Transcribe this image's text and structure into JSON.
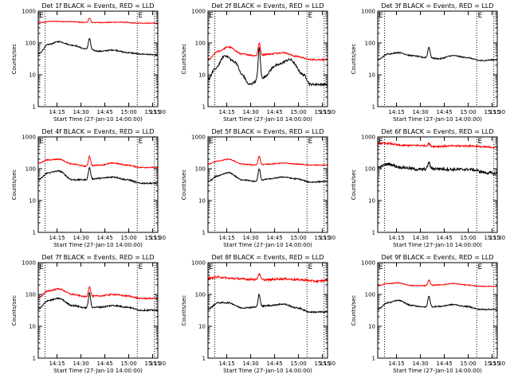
{
  "figure": {
    "background": "#ffffff",
    "axis_color": "#000000"
  },
  "chart_data": [
    {
      "type": "line",
      "title": "Det 1f BLACK = Events, RED = LLD",
      "xlabel": "Start Time (27-Jan-10 14:00:00)",
      "ylabel": "Counts/sec",
      "yscale": "log",
      "ylim": [
        1,
        1000
      ],
      "xlim_minutes": [
        3,
        38
      ],
      "x_ticks": [
        "14:15",
        "14:30",
        "14:45",
        "15:00",
        "15:15",
        "15:30"
      ],
      "y_ticks": [
        "1",
        "10",
        "100",
        "1000"
      ],
      "vlines_minutes": [
        5,
        32,
        37
      ],
      "markers": [
        "E",
        "E"
      ],
      "series": [
        {
          "color": "#ff0000",
          "peak": 600,
          "noise": 0.03,
          "x": [
            3,
            7,
            12,
            17,
            22,
            27,
            32,
            38
          ],
          "values": [
            430,
            480,
            470,
            440,
            440,
            450,
            420,
            420
          ]
        },
        {
          "color": "#000000",
          "peak": 140,
          "noise": 0.04,
          "x": [
            3,
            6,
            9,
            13,
            17,
            21,
            25,
            29,
            33,
            38
          ],
          "values": [
            45,
            90,
            110,
            85,
            65,
            55,
            60,
            50,
            45,
            42
          ]
        }
      ]
    },
    {
      "type": "line",
      "title": "Det 2f BLACK = Events, RED = LLD",
      "xlabel": "Start Time (27-Jan-10 14:00:00)",
      "ylabel": "Counts/sec",
      "yscale": "log",
      "ylim": [
        1,
        1000
      ],
      "xlim_minutes": [
        3,
        38
      ],
      "x_ticks": [
        "14:15",
        "14:30",
        "14:45",
        "15:00",
        "15:15",
        "15:30"
      ],
      "y_ticks": [
        "1",
        "10",
        "100",
        "1000"
      ],
      "vlines_minutes": [
        5,
        32,
        37
      ],
      "markers": [
        "E",
        "E"
      ],
      "series": [
        {
          "color": "#ff0000",
          "peak": 100,
          "noise": 0.05,
          "x": [
            3,
            6,
            9,
            13,
            17,
            21,
            25,
            29,
            33,
            38
          ],
          "values": [
            30,
            55,
            75,
            45,
            40,
            45,
            50,
            38,
            30,
            30
          ]
        },
        {
          "color": "#000000",
          "peak": 70,
          "noise": 0.08,
          "x": [
            3,
            5,
            8,
            11,
            13,
            15,
            19,
            23,
            27,
            31,
            33,
            38
          ],
          "values": [
            7,
            15,
            40,
            25,
            10,
            5,
            8,
            20,
            30,
            10,
            5,
            5
          ]
        }
      ]
    },
    {
      "type": "line",
      "title": "Det 3f BLACK = Events, RED = LLD",
      "xlabel": "Start Time (27-Jan-10 14:00:00)",
      "ylabel": "Counts/sec",
      "yscale": "log",
      "ylim": [
        1,
        1000
      ],
      "xlim_minutes": [
        3,
        38
      ],
      "x_ticks": [
        "14:15",
        "14:30",
        "14:45",
        "15:00",
        "15:15",
        "15:30"
      ],
      "y_ticks": [
        "1",
        "10",
        "100",
        "1000"
      ],
      "vlines_minutes": [
        5,
        32,
        37
      ],
      "markers": [
        "E",
        "E"
      ],
      "series": [
        {
          "color": "#000000",
          "peak": 75,
          "noise": 0.04,
          "x": [
            3,
            6,
            9,
            13,
            17,
            21,
            25,
            29,
            33,
            38
          ],
          "values": [
            30,
            45,
            50,
            40,
            35,
            32,
            40,
            35,
            28,
            30
          ]
        }
      ]
    },
    {
      "type": "line",
      "title": "Det 4f BLACK = Events, RED = LLD",
      "xlabel": "Start Time (27-Jan-10 14:00:00)",
      "ylabel": "Counts/sec",
      "yscale": "log",
      "ylim": [
        1,
        1000
      ],
      "xlim_minutes": [
        3,
        38
      ],
      "x_ticks": [
        "14:15",
        "14:30",
        "14:45",
        "15:00",
        "15:15",
        "15:30"
      ],
      "y_ticks": [
        "1",
        "10",
        "100",
        "1000"
      ],
      "vlines_minutes": [
        5,
        32,
        37
      ],
      "markers": [
        "E",
        "E"
      ],
      "series": [
        {
          "color": "#ff0000",
          "peak": 250,
          "noise": 0.04,
          "x": [
            3,
            6,
            9,
            13,
            17,
            21,
            25,
            29,
            33,
            38
          ],
          "values": [
            150,
            190,
            200,
            140,
            120,
            130,
            150,
            130,
            110,
            110
          ]
        },
        {
          "color": "#000000",
          "peak": 110,
          "noise": 0.05,
          "x": [
            3,
            6,
            9,
            13,
            17,
            21,
            25,
            29,
            33,
            38
          ],
          "values": [
            45,
            75,
            85,
            45,
            45,
            50,
            55,
            45,
            35,
            35
          ]
        }
      ]
    },
    {
      "type": "line",
      "title": "Det 5f BLACK = Events, RED = LLD",
      "xlabel": "Start Time (27-Jan-10 14:00:00)",
      "ylabel": "Counts/sec",
      "yscale": "log",
      "ylim": [
        1,
        1000
      ],
      "xlim_minutes": [
        3,
        38
      ],
      "x_ticks": [
        "14:15",
        "14:30",
        "14:45",
        "15:00",
        "15:15",
        "15:30"
      ],
      "y_ticks": [
        "1",
        "10",
        "100",
        "1000"
      ],
      "vlines_minutes": [
        5,
        32,
        37
      ],
      "markers": [
        "E",
        "E"
      ],
      "series": [
        {
          "color": "#ff0000",
          "peak": 250,
          "noise": 0.03,
          "x": [
            3,
            6,
            9,
            13,
            17,
            21,
            25,
            29,
            33,
            38
          ],
          "values": [
            140,
            175,
            200,
            140,
            130,
            140,
            150,
            140,
            130,
            130
          ]
        },
        {
          "color": "#000000",
          "peak": 100,
          "noise": 0.04,
          "x": [
            3,
            6,
            9,
            13,
            17,
            21,
            25,
            29,
            33,
            38
          ],
          "values": [
            40,
            60,
            75,
            45,
            40,
            48,
            55,
            48,
            38,
            40
          ]
        }
      ]
    },
    {
      "type": "line",
      "title": "Det 6f BLACK = Events, RED = LLD",
      "xlabel": "Start Time (27-Jan-10 14:00:00)",
      "ylabel": "Counts/sec",
      "yscale": "log",
      "ylim": [
        1,
        1000
      ],
      "xlim_minutes": [
        3,
        38
      ],
      "x_ticks": [
        "14:15",
        "14:30",
        "14:45",
        "15:00",
        "15:15",
        "15:30"
      ],
      "y_ticks": [
        "1",
        "10",
        "100",
        "1000"
      ],
      "vlines_minutes": [
        5,
        32,
        37
      ],
      "markers": [
        "E",
        "E"
      ],
      "series": [
        {
          "color": "#ff0000",
          "peak": 620,
          "noise": 0.06,
          "x": [
            3,
            6,
            10,
            15,
            20,
            25,
            30,
            35,
            38
          ],
          "values": [
            620,
            620,
            540,
            540,
            500,
            520,
            520,
            480,
            460
          ]
        },
        {
          "color": "#000000",
          "peak": 160,
          "noise": 0.1,
          "x": [
            3,
            6,
            10,
            15,
            20,
            25,
            30,
            35,
            38
          ],
          "values": [
            110,
            140,
            110,
            95,
            100,
            95,
            95,
            75,
            70
          ]
        }
      ]
    },
    {
      "type": "line",
      "title": "Det 7f BLACK = Events, RED = LLD",
      "xlabel": "Start Time (27-Jan-10 14:00:00)",
      "ylabel": "Counts/sec",
      "yscale": "log",
      "ylim": [
        1,
        1000
      ],
      "xlim_minutes": [
        3,
        38
      ],
      "x_ticks": [
        "14:15",
        "14:30",
        "14:45",
        "15:00",
        "15:15",
        "15:30"
      ],
      "y_ticks": [
        "1",
        "10",
        "100",
        "1000"
      ],
      "vlines_minutes": [
        5,
        32,
        37
      ],
      "markers": [
        "E",
        "E"
      ],
      "series": [
        {
          "color": "#ff0000",
          "peak": 180,
          "noise": 0.05,
          "x": [
            3,
            6,
            9,
            13,
            17,
            21,
            25,
            29,
            33,
            38
          ],
          "values": [
            80,
            130,
            150,
            100,
            85,
            90,
            100,
            90,
            75,
            75
          ]
        },
        {
          "color": "#000000",
          "peak": 110,
          "noise": 0.05,
          "x": [
            3,
            6,
            9,
            13,
            17,
            21,
            25,
            29,
            33,
            38
          ],
          "values": [
            35,
            65,
            75,
            45,
            38,
            40,
            45,
            40,
            32,
            32
          ]
        }
      ]
    },
    {
      "type": "line",
      "title": "Det 8f BLACK = Events, RED = LLD",
      "xlabel": "Start Time (27-Jan-10 14:00:00)",
      "ylabel": "Counts/sec",
      "yscale": "log",
      "ylim": [
        1,
        1000
      ],
      "xlim_minutes": [
        3,
        38
      ],
      "x_ticks": [
        "14:15",
        "14:30",
        "14:45",
        "15:00",
        "15:15",
        "15:30"
      ],
      "y_ticks": [
        "1",
        "10",
        "100",
        "1000"
      ],
      "vlines_minutes": [
        5,
        32,
        37
      ],
      "markers": [
        "E",
        "E"
      ],
      "series": [
        {
          "color": "#ff0000",
          "peak": 450,
          "noise": 0.07,
          "x": [
            3,
            6,
            10,
            15,
            20,
            25,
            30,
            35,
            38
          ],
          "values": [
            320,
            350,
            320,
            300,
            290,
            310,
            290,
            260,
            280
          ]
        },
        {
          "color": "#000000",
          "peak": 100,
          "noise": 0.05,
          "x": [
            3,
            6,
            9,
            13,
            17,
            21,
            25,
            29,
            33,
            38
          ],
          "values": [
            35,
            55,
            55,
            38,
            40,
            45,
            50,
            38,
            28,
            28
          ]
        }
      ]
    },
    {
      "type": "line",
      "title": "Det 9f BLACK = Events, RED = LLD",
      "xlabel": "Start Time (27-Jan-10 14:00:00)",
      "ylabel": "Counts/sec",
      "yscale": "log",
      "ylim": [
        1,
        1000
      ],
      "xlim_minutes": [
        3,
        38
      ],
      "x_ticks": [
        "14:15",
        "14:30",
        "14:45",
        "15:00",
        "15:15",
        "15:30"
      ],
      "y_ticks": [
        "1",
        "10",
        "100",
        "1000"
      ],
      "vlines_minutes": [
        5,
        32,
        37
      ],
      "markers": [
        "E",
        "E"
      ],
      "series": [
        {
          "color": "#ff0000",
          "peak": 280,
          "noise": 0.03,
          "x": [
            3,
            6,
            9,
            13,
            17,
            21,
            25,
            29,
            33,
            38
          ],
          "values": [
            190,
            220,
            230,
            190,
            190,
            200,
            220,
            200,
            180,
            180
          ]
        },
        {
          "color": "#000000",
          "peak": 90,
          "noise": 0.04,
          "x": [
            3,
            6,
            9,
            13,
            17,
            21,
            25,
            29,
            33,
            38
          ],
          "values": [
            35,
            55,
            65,
            45,
            40,
            42,
            48,
            42,
            34,
            34
          ]
        }
      ]
    }
  ]
}
